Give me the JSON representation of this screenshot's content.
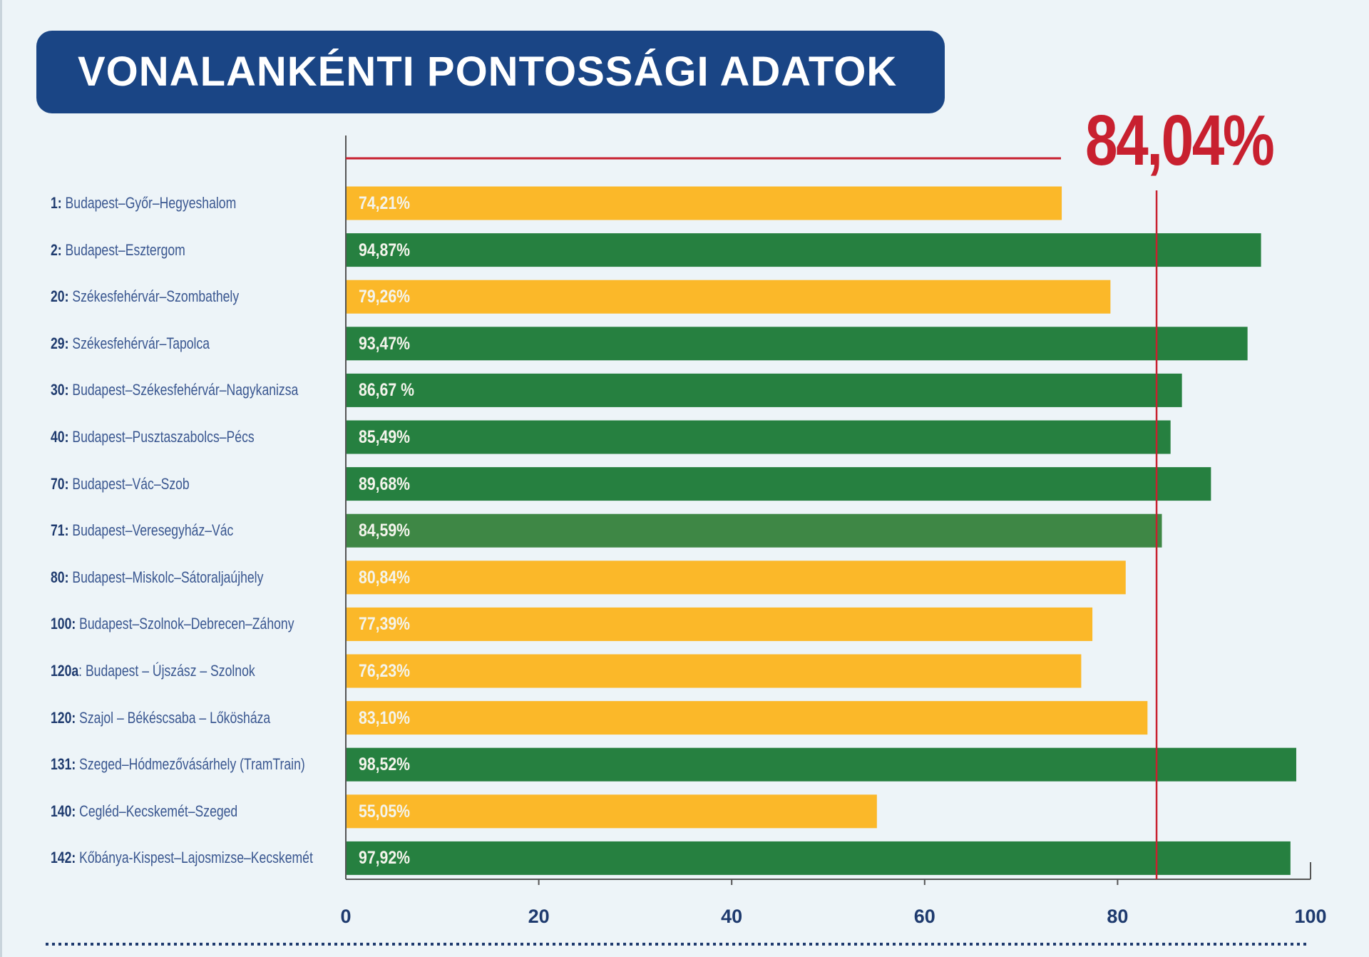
{
  "title": "VONALANKÉNTI PONTOSSÁGI ADATOK",
  "colors": {
    "above": "#268040",
    "above_highlight": "#3e8745",
    "below": "#fbb829",
    "average": "#c8202f",
    "title_bg": "#1a4585",
    "text": "#1e3a6e"
  },
  "chart_data": {
    "type": "bar",
    "orientation": "horizontal",
    "title": "VONALANKÉNTI PONTOSSÁGI ADATOK",
    "average": {
      "value": 84.04,
      "label": "84,04%"
    },
    "xlim": [
      0,
      100
    ],
    "xticks": [
      "0",
      "20",
      "40",
      "60",
      "80",
      "100"
    ],
    "grid": false,
    "rows": [
      {
        "num": "1:",
        "name": "Budapest–Győr–Hegyeshalom",
        "value": 74.21,
        "label": "74,21%",
        "status": "below"
      },
      {
        "num": "2:",
        "name": "Budapest–Esztergom",
        "value": 94.87,
        "label": "94,87%",
        "status": "above"
      },
      {
        "num": "20:",
        "name": "Székesfehérvár–Szombathely",
        "value": 79.26,
        "label": "79,26%",
        "status": "below"
      },
      {
        "num": "29:",
        "name": "Székesfehérvár–Tapolca",
        "value": 93.47,
        "label": "93,47%",
        "status": "above"
      },
      {
        "num": "30:",
        "name": "Budapest–Székesfehérvár–Nagykanizsa",
        "value": 86.67,
        "label": "86,67 %",
        "status": "above"
      },
      {
        "num": "40:",
        "name": "Budapest–Pusztaszabolcs–Pécs",
        "value": 85.49,
        "label": "85,49%",
        "status": "above"
      },
      {
        "num": "70:",
        "name": "Budapest–Vác–Szob",
        "value": 89.68,
        "label": "89,68%",
        "status": "above"
      },
      {
        "num": "71:",
        "name": "Budapest–Veresegyház–Vác",
        "value": 84.59,
        "label": "84,59%",
        "status": "above_highlight"
      },
      {
        "num": "80:",
        "name": "Budapest–Miskolc–Sátoraljaújhely",
        "value": 80.84,
        "label": "80,84%",
        "status": "below"
      },
      {
        "num": "100:",
        "name": "Budapest–Szolnok–Debrecen–Záhony",
        "value": 77.39,
        "label": "77,39%",
        "status": "below"
      },
      {
        "num": "120a",
        "name": ": Budapest – Újszász – Szolnok",
        "value": 76.23,
        "label": "76,23%",
        "status": "below"
      },
      {
        "num": "120:",
        "name": "Szajol – Békéscsaba – Lőkösháza",
        "value": 83.1,
        "label": "83,10%",
        "status": "below"
      },
      {
        "num": "131:",
        "name": "Szeged–Hódmezővásárhely (TramTrain)",
        "value": 98.52,
        "label": "98,52%",
        "status": "above"
      },
      {
        "num": "140:",
        "name": "Cegléd–Kecskemét–Szeged",
        "value": 55.05,
        "label": "55,05%",
        "status": "below"
      },
      {
        "num": "142:",
        "name": "Kőbánya-Kispest–Lajosmizse–Kecskemét",
        "value": 97.92,
        "label": "97,92%",
        "status": "above"
      }
    ]
  }
}
